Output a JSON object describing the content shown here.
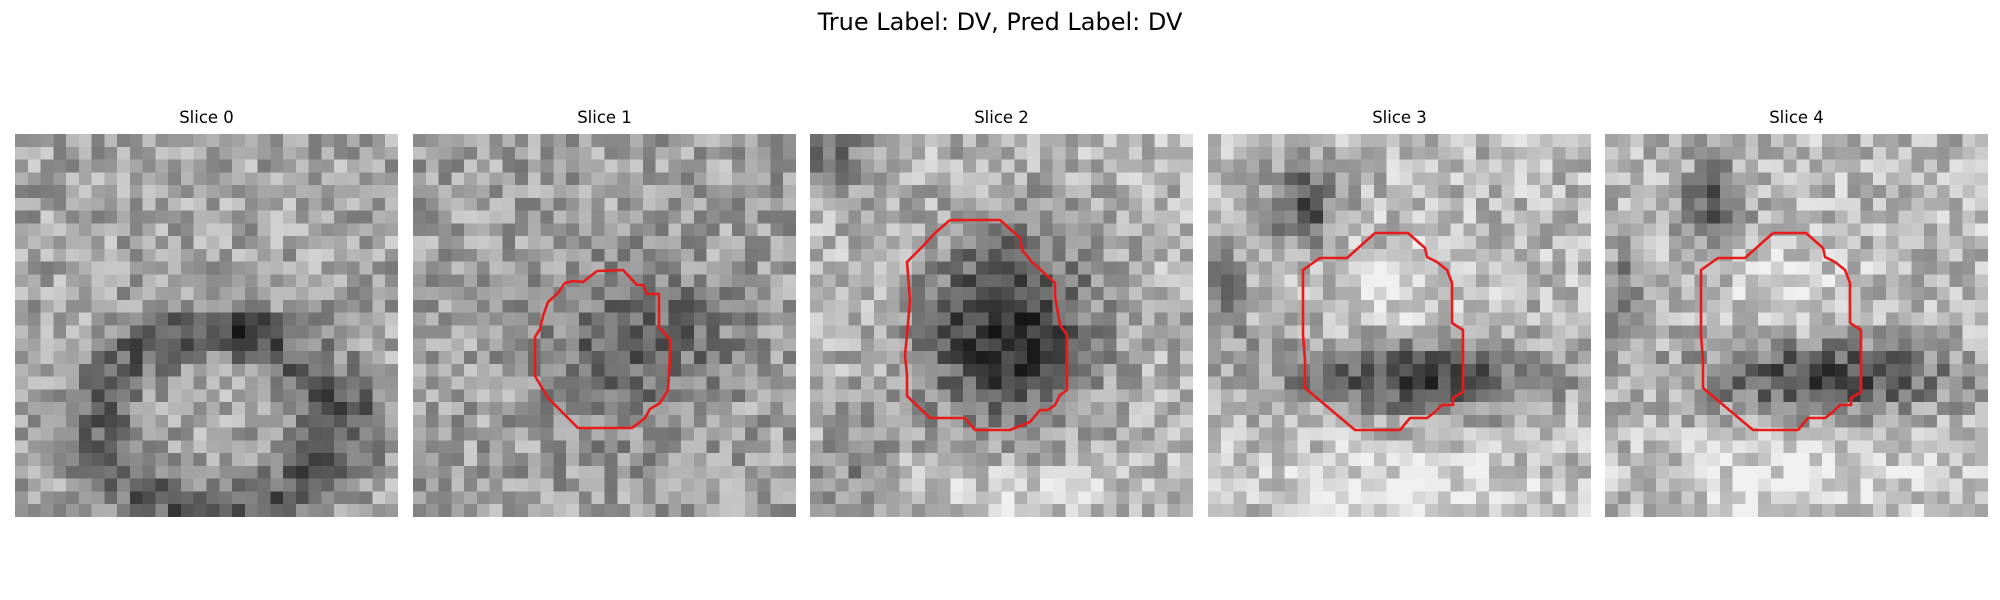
{
  "figure": {
    "title": "True Label: DV, Pred Label: DV"
  },
  "slices": [
    {
      "label": "Slice 0",
      "has_contour": false
    },
    {
      "label": "Slice 1",
      "has_contour": true
    },
    {
      "label": "Slice 2",
      "has_contour": true
    },
    {
      "label": "Slice 3",
      "has_contour": true
    },
    {
      "label": "Slice 4",
      "has_contour": true
    }
  ],
  "colors": {
    "contour": "#e81a1a"
  }
}
